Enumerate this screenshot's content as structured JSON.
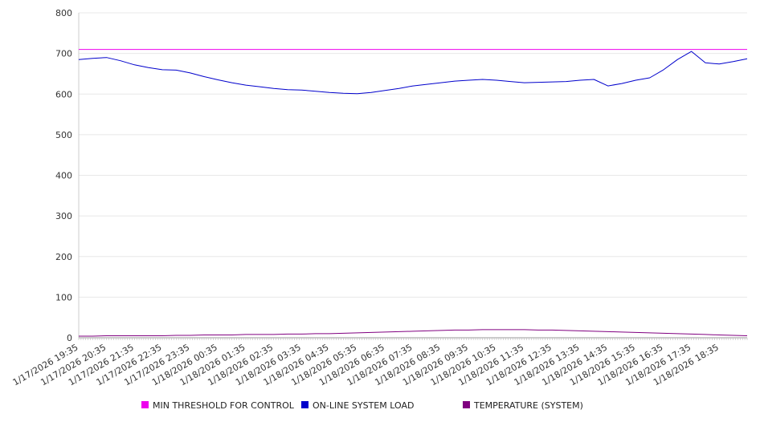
{
  "chart_data": {
    "type": "line",
    "title": "",
    "xlabel": "",
    "ylabel": "",
    "ylim": [
      0,
      800
    ],
    "yticks": [
      0,
      100,
      200,
      300,
      400,
      500,
      600,
      700,
      800
    ],
    "grid": "horizontal",
    "legend_position": "bottom",
    "x_start": "1/17/2026 19:35",
    "x_end": "1/18/2026 19:35",
    "x_tick_labels": [
      "1/17/2026 19:35",
      "1/17/2026 20:35",
      "1/17/2026 21:35",
      "1/17/2026 22:35",
      "1/17/2026 23:35",
      "1/18/2026 00:35",
      "1/18/2026 01:35",
      "1/18/2026 02:35",
      "1/18/2026 03:35",
      "1/18/2026 04:35",
      "1/18/2026 05:35",
      "1/18/2026 06:35",
      "1/18/2026 07:35",
      "1/18/2026 08:35",
      "1/18/2026 09:35",
      "1/18/2026 10:35",
      "1/18/2026 11:35",
      "1/18/2026 12:35",
      "1/18/2026 13:35",
      "1/18/2026 14:35",
      "1/18/2026 15:35",
      "1/18/2026 16:35",
      "1/18/2026 17:35",
      "1/18/2026 18:35"
    ],
    "x": [
      "1/17/2026 19:35",
      "1/17/2026 20:05",
      "1/17/2026 20:35",
      "1/17/2026 21:05",
      "1/17/2026 21:35",
      "1/17/2026 22:05",
      "1/17/2026 22:35",
      "1/17/2026 23:05",
      "1/17/2026 23:35",
      "1/18/2026 00:05",
      "1/18/2026 00:35",
      "1/18/2026 01:05",
      "1/18/2026 01:35",
      "1/18/2026 02:05",
      "1/18/2026 02:35",
      "1/18/2026 03:05",
      "1/18/2026 03:35",
      "1/18/2026 04:05",
      "1/18/2026 04:35",
      "1/18/2026 05:05",
      "1/18/2026 05:35",
      "1/18/2026 06:05",
      "1/18/2026 06:35",
      "1/18/2026 07:05",
      "1/18/2026 07:35",
      "1/18/2026 08:05",
      "1/18/2026 08:35",
      "1/18/2026 09:05",
      "1/18/2026 09:35",
      "1/18/2026 10:05",
      "1/18/2026 10:35",
      "1/18/2026 11:05",
      "1/18/2026 11:35",
      "1/18/2026 12:05",
      "1/18/2026 12:35",
      "1/18/2026 13:05",
      "1/18/2026 13:35",
      "1/18/2026 14:05",
      "1/18/2026 14:35",
      "1/18/2026 15:05",
      "1/18/2026 15:35",
      "1/18/2026 16:05",
      "1/18/2026 16:35",
      "1/18/2026 17:05",
      "1/18/2026 17:35",
      "1/18/2026 18:05",
      "1/18/2026 18:35",
      "1/18/2026 19:05",
      "1/18/2026 19:35"
    ],
    "series": [
      {
        "name": "MIN THRESHOLD FOR CONTROL",
        "color": "#ee00ee",
        "values": [
          710,
          710,
          710,
          710,
          710,
          710,
          710,
          710,
          710,
          710,
          710,
          710,
          710,
          710,
          710,
          710,
          710,
          710,
          710,
          710,
          710,
          710,
          710,
          710,
          710,
          710,
          710,
          710,
          710,
          710,
          710,
          710,
          710,
          710,
          710,
          710,
          710,
          710,
          710,
          710,
          710,
          710,
          710,
          710,
          710,
          710,
          710,
          710,
          710
        ]
      },
      {
        "name": "ON-LINE SYSTEM LOAD",
        "color": "#0000cc",
        "values": [
          685,
          688,
          690,
          682,
          672,
          665,
          660,
          659,
          652,
          643,
          635,
          628,
          622,
          618,
          614,
          611,
          610,
          607,
          604,
          602,
          601,
          604,
          609,
          614,
          620,
          624,
          628,
          632,
          634,
          636,
          634,
          631,
          628,
          629,
          630,
          631,
          634,
          636,
          620,
          626,
          634,
          640,
          660,
          685,
          705,
          677,
          674,
          680,
          687
        ]
      },
      {
        "name": "TEMPERATURE (SYSTEM)",
        "color": "#800080",
        "values": [
          4,
          4,
          5,
          5,
          5,
          5,
          5,
          6,
          6,
          7,
          7,
          7,
          8,
          8,
          8,
          9,
          9,
          10,
          10,
          11,
          12,
          13,
          14,
          15,
          16,
          17,
          18,
          19,
          19,
          20,
          20,
          20,
          20,
          19,
          19,
          18,
          17,
          16,
          15,
          14,
          13,
          12,
          11,
          10,
          9,
          8,
          7,
          6,
          5
        ]
      }
    ]
  }
}
